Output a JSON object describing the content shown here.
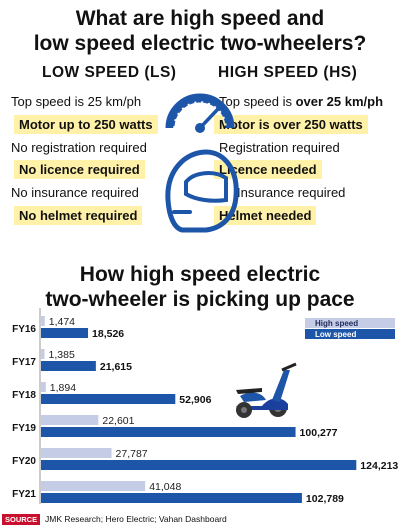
{
  "section1": {
    "title_line1": "What are high speed and",
    "title_line2": "low speed electric two-wheelers?",
    "low_speed": {
      "header": "LOW SPEED (LS)",
      "items": [
        {
          "text": "Top speed is 25 km/ph",
          "highlight": false
        },
        {
          "text": "Motor up to 250 watts",
          "highlight": true
        },
        {
          "text": "No registration required",
          "highlight": false
        },
        {
          "text": "No licence required",
          "highlight": true
        },
        {
          "text": "No insurance required",
          "highlight": false
        },
        {
          "text": "No helmet required",
          "highlight": true
        }
      ]
    },
    "high_speed": {
      "header": "HIGH SPEED (HS)",
      "items": [
        {
          "text_plain": "Top speed is ",
          "text_bold": "over 25 km/ph",
          "highlight": false
        },
        {
          "text_plain": "Motor is ",
          "text_bold": "over 250 watts",
          "highlight": true
        },
        {
          "text_plain": "Registration required",
          "text_bold": "",
          "highlight": false
        },
        {
          "text_plain": "",
          "text_bold": "Licence needed",
          "highlight": true
        },
        {
          "text_plain": "Insurance required",
          "text_bold": "",
          "highlight": false
        },
        {
          "text_plain": "",
          "text_bold": "Helmet needed",
          "highlight": true
        }
      ]
    },
    "icons": [
      "speedometer-icon",
      "helmet-icon"
    ]
  },
  "section2": {
    "title_line1": "How high speed electric",
    "title_line2": "two-wheeler is picking up pace"
  },
  "chart_data": {
    "type": "bar",
    "orientation": "horizontal",
    "categories": [
      "FY16",
      "FY17",
      "FY18",
      "FY19",
      "FY20",
      "FY21"
    ],
    "series": [
      {
        "name": "High speed",
        "values": [
          1474,
          1385,
          1894,
          22601,
          27787,
          41048
        ],
        "color": "#c5cde6"
      },
      {
        "name": "Low speed",
        "values": [
          18526,
          21615,
          52906,
          100277,
          124213,
          102789
        ],
        "color": "#1d56a8"
      }
    ],
    "value_labels": {
      "High speed": [
        "1,474",
        "1,385",
        "1,894",
        "22,601",
        "27,787",
        "41,048"
      ],
      "Low speed": [
        "18,526",
        "21,615",
        "52,906",
        "100,277",
        "124,213",
        "102,789"
      ]
    },
    "title": "How high speed electric two-wheeler is picking up pace",
    "legend_position": "top-right",
    "grid": false
  },
  "footer": {
    "source_tag": "SOURCE",
    "source_text": "JMK Research; Hero Electric; Vahan Dashboard"
  },
  "colors": {
    "highlight": "#fff2a8",
    "icon_blue": "#1d56a8",
    "source_red": "#c8102e"
  }
}
